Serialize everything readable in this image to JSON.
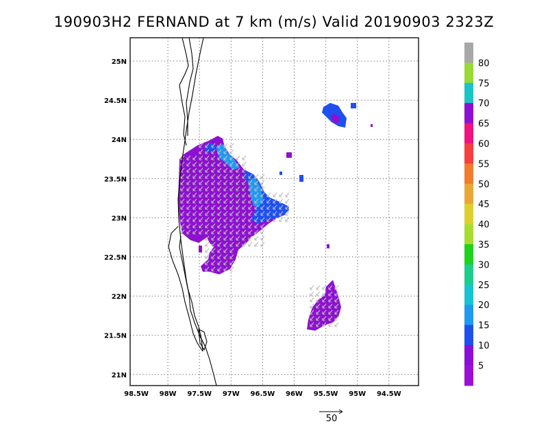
{
  "title": "190903H2 FERNAND at 7 km (m/s) Valid 20190903 2323Z",
  "map": {
    "lon_ticks": [
      "98.5W",
      "98W",
      "97.5W",
      "97W",
      "96.5W",
      "96W",
      "95.5W",
      "95W",
      "94.5W"
    ],
    "lat_ticks": [
      "25N",
      "24.5N",
      "24N",
      "23.5N",
      "23N",
      "22.5N",
      "22N",
      "21.5N",
      "21N"
    ],
    "grid": "dotted",
    "field": "wind speed (m/s) with wind vectors"
  },
  "reference_vector": {
    "label": "50"
  },
  "colorbar": {
    "labels": [
      "80",
      "75",
      "70",
      "65",
      "60",
      "55",
      "50",
      "45",
      "40",
      "35",
      "30",
      "25",
      "20",
      "15",
      "10",
      "5"
    ],
    "colors_top_to_bottom": [
      "#a8a8a8",
      "#99d934",
      "#1bc4c8",
      "#8e10d0",
      "#f0127e",
      "#f83e3e",
      "#f27b2e",
      "#e8a836",
      "#ddd02e",
      "#a8dc30",
      "#1ed21e",
      "#1ecc8c",
      "#18c4d4",
      "#1e9af0",
      "#1e50f0",
      "#8a10d8",
      "#9c10d6"
    ]
  }
}
